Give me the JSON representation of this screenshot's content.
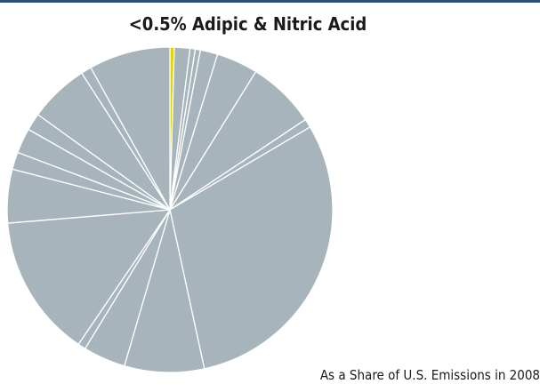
{
  "chart_data": {
    "type": "pie",
    "title": "<0.5% Adipic & Nitric Acid",
    "caption": "As a Share of U.S. Emissions in 2008",
    "slice_color": "#a7b4bc",
    "highlight_color": "#e3d300",
    "separator_color": "#ffffff",
    "start_angle_deg": 0,
    "direction": "clockwise",
    "highlight_index": 0,
    "values": [
      0.5,
      1.8,
      0.6,
      0.6,
      2.0,
      4.8,
      7.9,
      1.0,
      35.0,
      9.2,
      4.9,
      0.9,
      16.5,
      6.2,
      2.0,
      2.9,
      2.0,
      6.9,
      1.2,
      9.4
    ]
  }
}
